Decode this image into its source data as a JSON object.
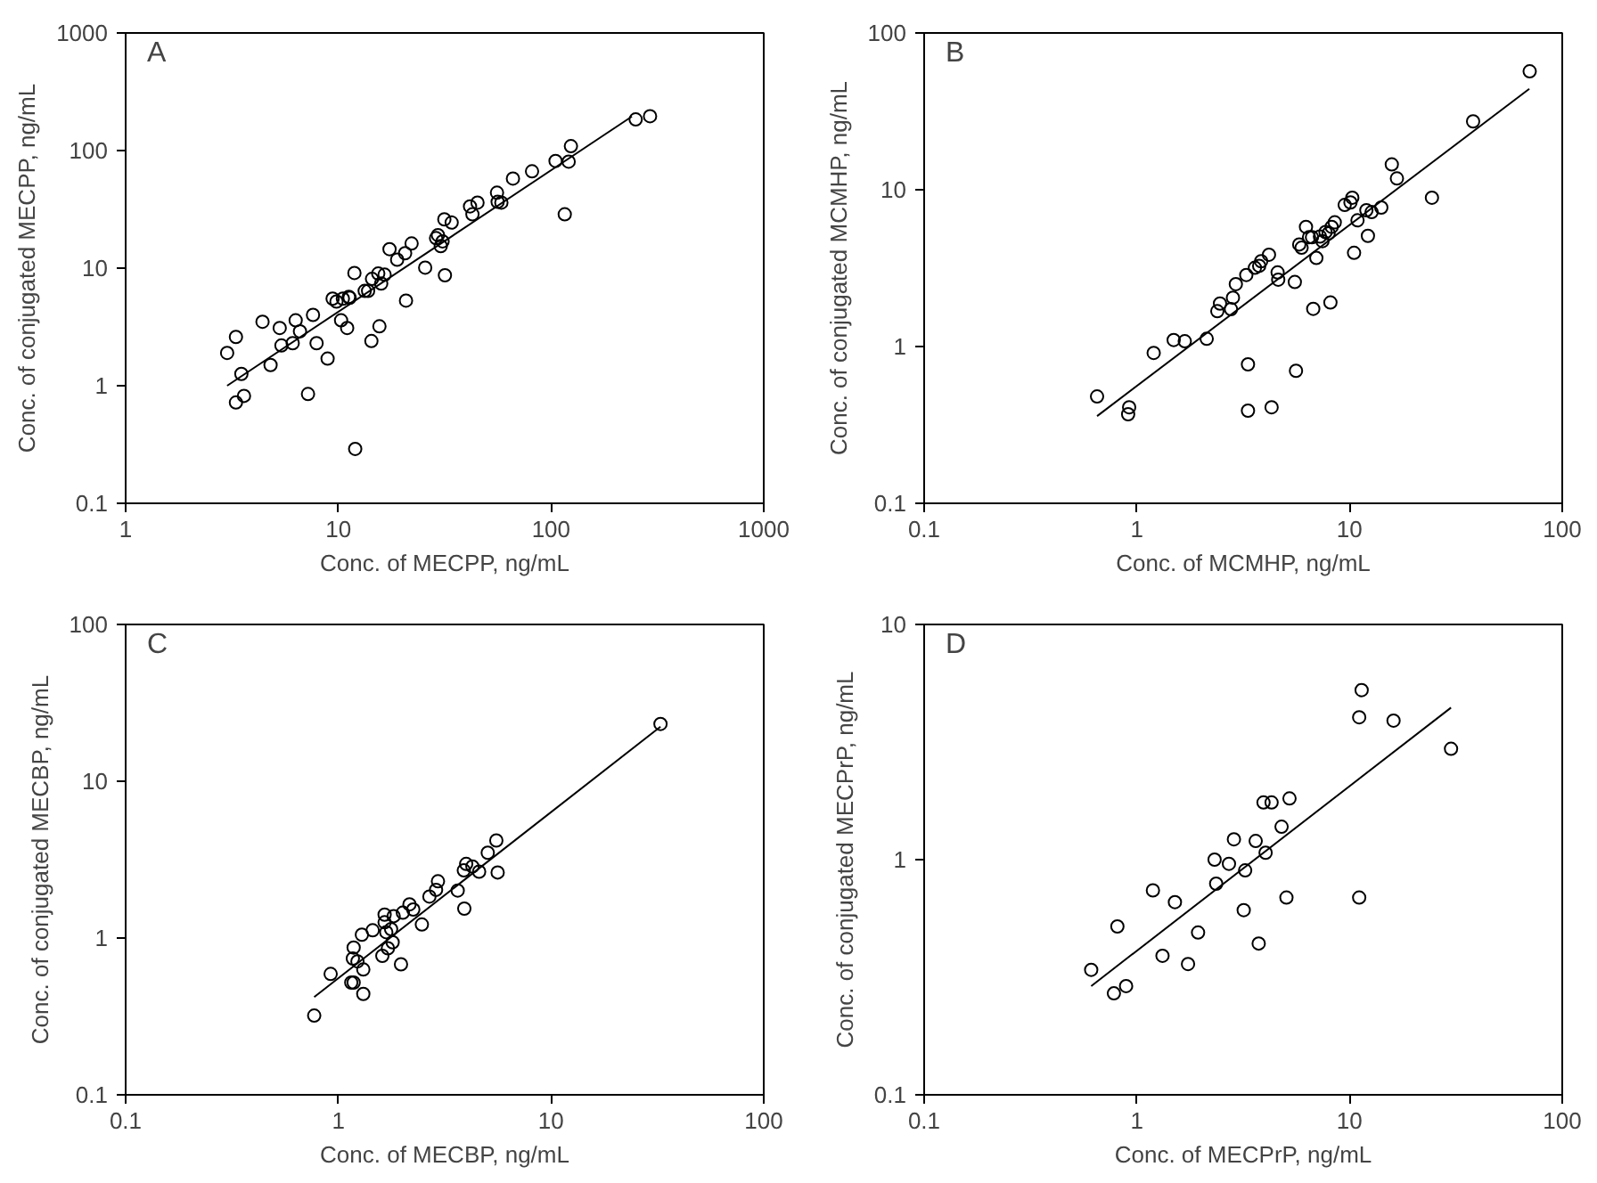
{
  "chart_data": [
    {
      "type": "scatter",
      "annotations": [
        "A"
      ],
      "xlabel": "Conc. of MECPP, ng/mL",
      "ylabel": "Conc. of conjugated MECPP, ng/mL",
      "log": "xy",
      "xlim": [
        1,
        1000
      ],
      "ylim": [
        0.1,
        1000
      ],
      "xticks": [
        1,
        10,
        100,
        1000
      ],
      "yticks": [
        0.1,
        1,
        10,
        100,
        1000
      ],
      "grid": false,
      "marker": "circle",
      "series": [
        {
          "color": "#000000",
          "x": [
            3.0,
            3.3,
            3.3,
            3.5,
            3.6,
            4.4,
            4.8,
            5.3,
            5.4,
            6.1,
            6.3,
            6.6,
            7.2,
            7.6,
            7.9,
            8.9,
            9.4,
            9.8,
            10.3,
            10.5,
            11.0,
            11.2,
            11.3,
            11.9,
            12.0,
            13.3,
            13.8,
            14.3,
            14.4,
            15.4,
            15.6,
            15.9,
            16.5,
            17.4,
            18.9,
            20.6,
            20.8,
            22.1,
            25.6,
            28.8,
            29.4,
            30.3,
            30.9,
            31.5,
            31.7,
            34.1,
            41.6,
            42.7,
            45.1,
            55.7,
            56.1,
            58.4,
            66.2,
            81.4,
            105,
            121,
            124,
            116,
            250,
            292
          ],
          "values": [
            1.9,
            2.6,
            0.72,
            1.26,
            0.82,
            3.5,
            1.5,
            3.1,
            2.2,
            2.3,
            3.6,
            2.9,
            0.85,
            4.0,
            2.3,
            1.7,
            5.5,
            5.2,
            3.6,
            5.5,
            3.1,
            5.7,
            5.6,
            9.1,
            0.29,
            6.4,
            6.4,
            2.4,
            8.1,
            9.0,
            3.2,
            7.4,
            8.8,
            14.5,
            11.8,
            13.4,
            5.3,
            16.2,
            10.1,
            18.0,
            19.1,
            15.4,
            16.9,
            26.0,
            8.7,
            24.4,
            33.5,
            28.7,
            36.1,
            43.8,
            36.6,
            36.1,
            57.8,
            66.6,
            81.6,
            80.5,
            109,
            28.7,
            184,
            196
          ]
        },
        {
          "type": "line",
          "color": "#000000",
          "marker": "none",
          "line_style": "solid",
          "x": [
            3.0,
            240
          ],
          "values": [
            1.0,
            195
          ]
        }
      ]
    },
    {
      "type": "scatter",
      "annotations": [
        "B"
      ],
      "xlabel": "Conc. of MCMHP, ng/mL",
      "ylabel": "Conc. of conjugated MCMHP, ng/mL",
      "log": "xy",
      "xlim": [
        0.1,
        100
      ],
      "ylim": [
        0.1,
        100
      ],
      "xticks": [
        0.1,
        1,
        10,
        100
      ],
      "yticks": [
        0.1,
        1,
        10,
        100
      ],
      "grid": false,
      "marker": "circle",
      "series": [
        {
          "color": "#000000",
          "x": [
            0.65,
            0.91,
            0.92,
            1.2,
            1.49,
            1.68,
            2.13,
            2.39,
            2.46,
            2.77,
            2.83,
            2.92,
            3.27,
            3.33,
            3.33,
            3.59,
            3.76,
            3.84,
            4.18,
            4.3,
            4.59,
            4.62,
            5.53,
            5.6,
            5.8,
            5.95,
            6.24,
            6.45,
            6.66,
            6.75,
            6.98,
            7.26,
            7.46,
            7.71,
            7.97,
            8.13,
            8.24,
            8.52,
            9.49,
            10.1,
            10.3,
            10.5,
            10.9,
            12.0,
            12.2,
            12.7,
            14.1,
            15.8,
            16.7,
            24.4,
            38.1,
            70.3
          ],
          "values": [
            0.48,
            0.37,
            0.41,
            0.91,
            1.1,
            1.08,
            1.12,
            1.68,
            1.88,
            1.73,
            2.05,
            2.5,
            2.86,
            0.77,
            0.39,
            3.18,
            3.27,
            3.5,
            3.85,
            0.41,
            2.97,
            2.67,
            2.58,
            0.7,
            4.48,
            4.27,
            5.8,
            4.98,
            4.98,
            1.74,
            3.67,
            5.03,
            4.7,
            5.37,
            5.27,
            1.91,
            5.8,
            6.2,
            8.0,
            8.3,
            8.9,
            3.96,
            6.38,
            7.4,
            5.08,
            7.2,
            7.7,
            14.5,
            11.8,
            8.9,
            27.3,
            56.9
          ]
        },
        {
          "type": "line",
          "color": "#000000",
          "marker": "none",
          "line_style": "solid",
          "x": [
            0.65,
            70
          ],
          "values": [
            0.36,
            44
          ]
        }
      ]
    },
    {
      "type": "scatter",
      "annotations": [
        "C"
      ],
      "xlabel": "Conc. of MECBP, ng/mL",
      "ylabel": "Conc. of conjugated MECBP, ng/mL",
      "log": "xy",
      "xlim": [
        0.1,
        100
      ],
      "ylim": [
        0.1,
        100
      ],
      "xticks": [
        0.1,
        1,
        10,
        100
      ],
      "yticks": [
        0.1,
        1,
        10,
        100
      ],
      "grid": false,
      "marker": "circle",
      "series": [
        {
          "color": "#000000",
          "x": [
            0.77,
            0.92,
            1.15,
            1.18,
            1.17,
            1.18,
            1.23,
            1.29,
            1.31,
            1.31,
            1.45,
            1.61,
            1.65,
            1.65,
            1.68,
            1.71,
            1.77,
            1.8,
            1.82,
            1.97,
            2.01,
            2.16,
            2.25,
            2.47,
            2.68,
            2.88,
            2.94,
            3.64,
            3.91,
            3.89,
            3.99,
            4.27,
            4.59,
            5.04,
            5.53,
            5.61,
            32.7
          ],
          "values": [
            0.32,
            0.59,
            0.52,
            0.52,
            0.74,
            0.87,
            0.71,
            1.05,
            0.63,
            0.44,
            1.12,
            0.77,
            1.26,
            1.41,
            1.09,
            0.86,
            1.14,
            0.94,
            1.38,
            0.68,
            1.45,
            1.64,
            1.52,
            1.22,
            1.84,
            2.03,
            2.3,
            2.01,
            1.54,
            2.7,
            2.97,
            2.86,
            2.65,
            3.5,
            4.19,
            2.62,
            23.2
          ]
        },
        {
          "type": "line",
          "color": "#000000",
          "marker": "none",
          "line_style": "solid",
          "x": [
            0.77,
            32.7
          ],
          "values": [
            0.42,
            22.3
          ]
        }
      ]
    },
    {
      "type": "scatter",
      "annotations": [
        "D"
      ],
      "xlabel": "Conc. of MECPrP, ng/mL",
      "ylabel": "Conc. of conjugated MECPrP, ng/mL",
      "log": "xy",
      "xlim": [
        0.1,
        100
      ],
      "ylim": [
        0.1,
        10
      ],
      "xticks": [
        0.1,
        1,
        10,
        100
      ],
      "yticks": [
        0.1,
        1,
        10
      ],
      "grid": false,
      "marker": "circle",
      "series": [
        {
          "color": "#000000",
          "x": [
            0.61,
            0.78,
            0.81,
            0.89,
            1.19,
            1.32,
            1.51,
            1.74,
            1.94,
            2.32,
            2.36,
            2.71,
            2.86,
            3.18,
            3.23,
            3.62,
            3.74,
            3.94,
            4.03,
            4.3,
            4.79,
            5.05,
            5.22,
            11.1,
            11.1,
            11.4,
            16.1,
            30.0
          ],
          "values": [
            0.34,
            0.27,
            0.52,
            0.29,
            0.74,
            0.39,
            0.66,
            0.36,
            0.49,
            1.0,
            0.79,
            0.96,
            1.22,
            0.61,
            0.9,
            1.2,
            0.44,
            1.75,
            1.07,
            1.75,
            1.38,
            0.69,
            1.82,
            0.69,
            4.03,
            5.26,
            3.9,
            2.96
          ]
        },
        {
          "type": "line",
          "color": "#000000",
          "marker": "none",
          "line_style": "solid",
          "x": [
            0.61,
            30.0
          ],
          "values": [
            0.29,
            4.43
          ]
        }
      ]
    }
  ]
}
